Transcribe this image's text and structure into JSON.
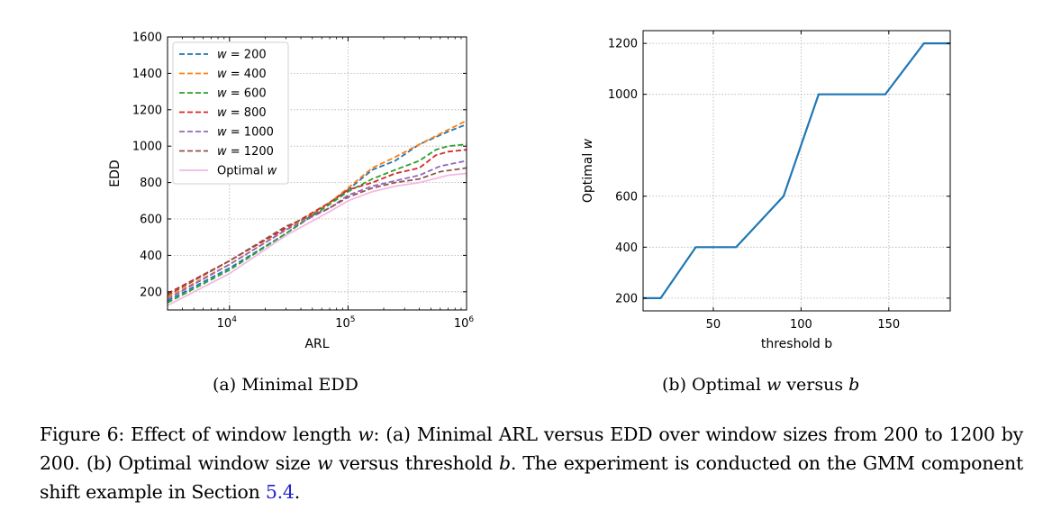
{
  "chart_data": [
    {
      "type": "line",
      "xscale": "log",
      "xlabel": "ARL",
      "ylabel": "EDD",
      "xlim": [
        3000,
        1000000
      ],
      "ylim": [
        100,
        1600
      ],
      "xtick_base": "10",
      "xticks": [
        {
          "value": 10000,
          "exp": "4"
        },
        {
          "value": 100000,
          "exp": "5"
        },
        {
          "value": 1000000,
          "exp": "6"
        }
      ],
      "yticks": [
        200,
        400,
        600,
        800,
        1000,
        1200,
        1400,
        1600
      ],
      "legend_position": "top-left",
      "series": [
        {
          "name": "w = 200",
          "legend_var": "w",
          "legend_val": "= 200",
          "color": "#1f77b4",
          "style": "dashed",
          "x": [
            3000,
            10000,
            30000,
            70000,
            100000,
            160000,
            250000,
            400000,
            700000,
            1000000
          ],
          "y": [
            150,
            330,
            520,
            690,
            760,
            870,
            920,
            1010,
            1080,
            1120
          ]
        },
        {
          "name": "w = 400",
          "legend_var": "w",
          "legend_val": "= 400",
          "color": "#ff7f0e",
          "style": "dashed",
          "x": [
            3000,
            10000,
            30000,
            70000,
            100000,
            160000,
            250000,
            400000,
            700000,
            1000000
          ],
          "y": [
            170,
            350,
            540,
            690,
            770,
            880,
            940,
            1010,
            1090,
            1140
          ]
        },
        {
          "name": "w = 600",
          "legend_var": "w",
          "legend_val": "= 600",
          "color": "#2ca02c",
          "style": "dashed",
          "x": [
            3000,
            10000,
            30000,
            70000,
            100000,
            160000,
            250000,
            400000,
            550000,
            700000,
            1000000
          ],
          "y": [
            140,
            320,
            520,
            680,
            750,
            820,
            870,
            920,
            980,
            1000,
            1010
          ]
        },
        {
          "name": "w = 800",
          "legend_var": "w",
          "legend_val": "= 800",
          "color": "#d62728",
          "style": "dashed",
          "x": [
            3000,
            10000,
            30000,
            70000,
            100000,
            160000,
            250000,
            400000,
            550000,
            700000,
            1000000
          ],
          "y": [
            190,
            370,
            550,
            690,
            760,
            800,
            850,
            880,
            950,
            970,
            980
          ]
        },
        {
          "name": "w = 1000",
          "legend_var": "w",
          "legend_val": "= 1000",
          "color": "#9467bd",
          "style": "dashed",
          "x": [
            3000,
            10000,
            30000,
            70000,
            100000,
            160000,
            250000,
            400000,
            600000,
            1000000
          ],
          "y": [
            160,
            350,
            540,
            660,
            730,
            780,
            810,
            840,
            890,
            920
          ]
        },
        {
          "name": "w = 1200",
          "legend_var": "w",
          "legend_val": "= 1200",
          "color": "#8c564b",
          "style": "dashed",
          "x": [
            3000,
            10000,
            30000,
            70000,
            100000,
            160000,
            250000,
            400000,
            600000,
            1000000
          ],
          "y": [
            180,
            370,
            560,
            660,
            720,
            770,
            800,
            820,
            860,
            880
          ]
        },
        {
          "name": "Optimal w",
          "legend_var": "w",
          "legend_val": "Optimal",
          "color": "#f4b8e4",
          "style": "solid",
          "x": [
            3000,
            10000,
            30000,
            70000,
            100000,
            160000,
            250000,
            400000,
            700000,
            1000000
          ],
          "y": [
            125,
            300,
            510,
            640,
            700,
            750,
            780,
            800,
            840,
            850
          ]
        }
      ]
    },
    {
      "type": "line",
      "xlabel": "threshold b",
      "ylabel": "Optimal w",
      "ylabel_prefix": "Optimal",
      "ylabel_var": "w",
      "xlim": [
        10,
        185
      ],
      "ylim": [
        150,
        1250
      ],
      "xticks": [
        50,
        100,
        150
      ],
      "yticks": [
        200,
        400,
        600,
        1000,
        1200
      ],
      "series": [
        {
          "name": "Optimal w",
          "color": "#1f77b4",
          "style": "solid",
          "x": [
            10,
            20,
            40,
            63,
            90,
            110,
            148,
            170,
            185
          ],
          "y": [
            200,
            200,
            400,
            400,
            600,
            1000,
            1000,
            1200,
            1200
          ]
        }
      ]
    }
  ],
  "subcaptions": {
    "a": "(a) Minimal EDD",
    "b_prefix": "(b) Optimal",
    "b_var": "w",
    "b_mid": "versus",
    "b_var2": "b"
  },
  "caption": {
    "p1": "Figure 6: Effect of window length",
    "v1": "w",
    "p2": ": (a) Minimal ARL versus EDD over window sizes from 200 to 1200 by 200. (b) Optimal window size",
    "v2": "w",
    "p3": "versus threshold",
    "v3": "b",
    "p4": ". The experiment is conducted on the GMM component shift example in Section",
    "ref": "5.4",
    "p5": "."
  }
}
